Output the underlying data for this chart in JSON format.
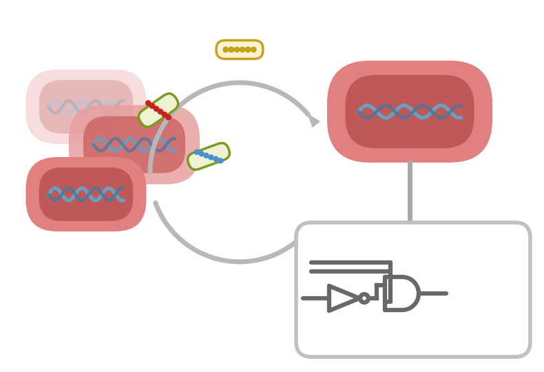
{
  "bg_color": "#ffffff",
  "cell_outer_color_full": "#e08080",
  "cell_inner_color_full": "#c05858",
  "cell_outer_color_mid": "#e8a0a0",
  "cell_inner_color_mid": "#cc6666",
  "cell_outer_color_faint": "#f0c8c8",
  "cell_inner_color_faint": "#dda0a0",
  "dna_color1": "#6a9fc0",
  "dna_color2": "#4878a0",
  "arrow_color": "#b8b8b8",
  "circuit_box_border": "#c0c0c0",
  "circuit_color": "#686868",
  "connector_color": "#a8a8a8",
  "plasmid1_border": "#7a9a20",
  "plasmid1_fill": "#eef2d0",
  "plasmid1_dots": "#cc2020",
  "plasmid2_border": "#7a9a20",
  "plasmid2_fill": "#eef2d0",
  "plasmid2_dots": "#4a90d0",
  "plasmid3_border": "#c8a020",
  "plasmid3_fill": "#fdf4d0",
  "plasmid3_dots": "#c8a020"
}
